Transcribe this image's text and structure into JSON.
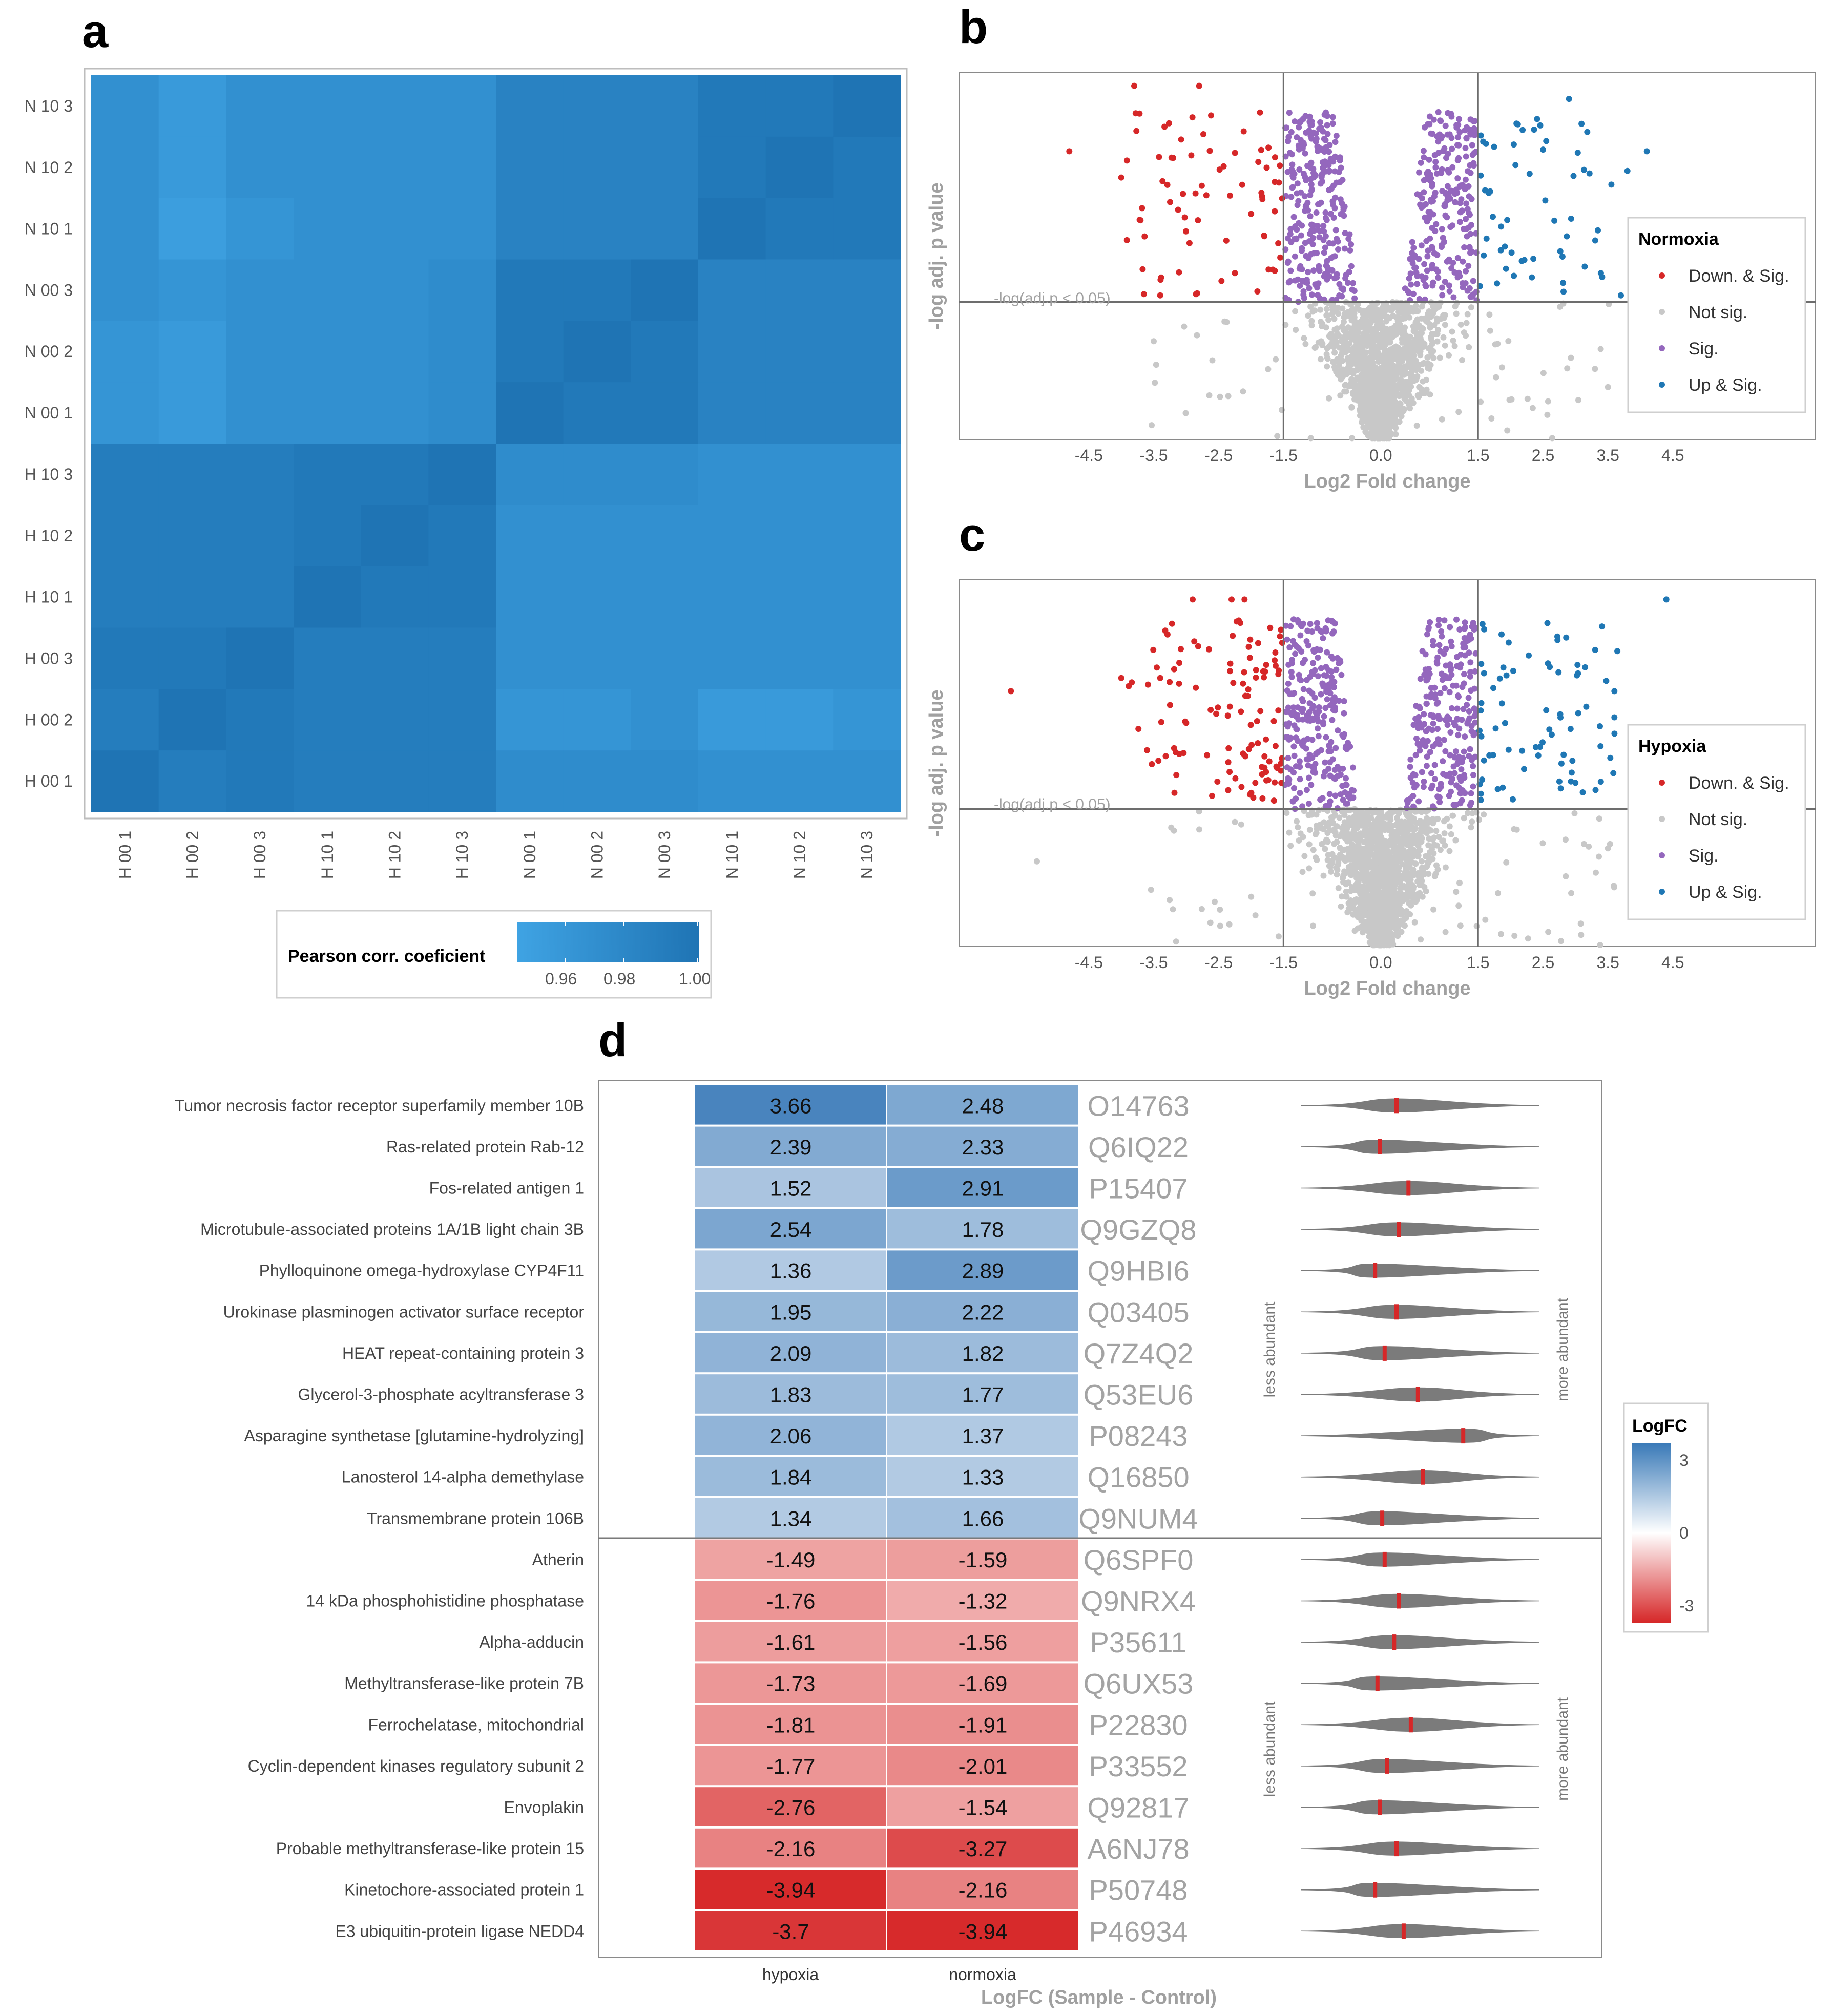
{
  "colors": {
    "down": "#d62728",
    "notsig": "#c8c8c8",
    "sig": "#9467bd",
    "up": "#1f77b4",
    "corr_low": "#3fa3e3",
    "corr_high": "#1f74b4",
    "fc_pos": "#3a7ab8",
    "fc_neg": "#d62728",
    "violin": "#7b7b7b",
    "median": "#d62728"
  },
  "panels": {
    "a": "a",
    "b": "b",
    "c": "c",
    "d": "d"
  },
  "chart_data": [
    {
      "id": "a",
      "type": "heatmap",
      "title": "",
      "row_labels_top_to_bottom": [
        "N 10 3",
        "N 10 2",
        "N 10 1",
        "N 00 3",
        "N 00 2",
        "N 00 1",
        "H 10 3",
        "H 10 2",
        "H 10 1",
        "H 00 3",
        "H 00 2",
        "H 00 1"
      ],
      "col_labels": [
        "H 00 1",
        "H 00 2",
        "H 00 3",
        "H 10 1",
        "H 10 2",
        "H 10 3",
        "N 00 1",
        "N 00 2",
        "N 00 3",
        "N 10 1",
        "N 10 2",
        "N 10 3"
      ],
      "values_rows_top_to_bottom": [
        [
          0.97,
          0.96,
          0.97,
          0.97,
          0.97,
          0.97,
          0.985,
          0.985,
          0.985,
          0.995,
          0.995,
          1.0
        ],
        [
          0.97,
          0.96,
          0.97,
          0.97,
          0.97,
          0.97,
          0.985,
          0.985,
          0.985,
          0.995,
          1.0,
          0.995
        ],
        [
          0.97,
          0.955,
          0.965,
          0.97,
          0.97,
          0.97,
          0.985,
          0.985,
          0.985,
          1.0,
          0.995,
          0.995
        ],
        [
          0.97,
          0.965,
          0.97,
          0.97,
          0.97,
          0.975,
          0.995,
          0.995,
          1.0,
          0.985,
          0.985,
          0.985
        ],
        [
          0.965,
          0.96,
          0.97,
          0.97,
          0.97,
          0.975,
          0.995,
          1.0,
          0.995,
          0.985,
          0.985,
          0.985
        ],
        [
          0.965,
          0.96,
          0.97,
          0.97,
          0.97,
          0.975,
          1.0,
          0.995,
          0.995,
          0.985,
          0.985,
          0.985
        ],
        [
          0.99,
          0.99,
          0.99,
          0.995,
          0.995,
          1.0,
          0.975,
          0.975,
          0.975,
          0.97,
          0.97,
          0.97
        ],
        [
          0.99,
          0.99,
          0.99,
          0.995,
          1.0,
          0.995,
          0.97,
          0.97,
          0.97,
          0.97,
          0.97,
          0.97
        ],
        [
          0.99,
          0.99,
          0.99,
          1.0,
          0.995,
          0.995,
          0.97,
          0.97,
          0.97,
          0.97,
          0.97,
          0.97
        ],
        [
          0.995,
          0.995,
          1.0,
          0.99,
          0.99,
          0.99,
          0.97,
          0.97,
          0.97,
          0.97,
          0.97,
          0.97
        ],
        [
          0.99,
          1.0,
          0.995,
          0.99,
          0.99,
          0.99,
          0.965,
          0.965,
          0.97,
          0.96,
          0.96,
          0.965
        ],
        [
          1.0,
          0.99,
          0.995,
          0.99,
          0.99,
          0.99,
          0.975,
          0.975,
          0.975,
          0.97,
          0.97,
          0.97
        ]
      ],
      "legend": {
        "title": "Pearson corr. coeficient",
        "ticks": [
          "0.96",
          "0.98",
          "1.00"
        ],
        "range": [
          0.95,
          1.0
        ]
      }
    },
    {
      "id": "b",
      "type": "scatter",
      "title": "",
      "xlabel": "Log2 Fold change",
      "ylabel": "-log adj. p value",
      "x_ticks": [
        "-4.5",
        "-3.5",
        "-2.5",
        "-1.5",
        "0.0",
        "1.5",
        "2.5",
        "3.5",
        "4.5"
      ],
      "x_tick_values": [
        -4.5,
        -3.5,
        -2.5,
        -1.5,
        0.0,
        1.5,
        2.5,
        3.5,
        4.5
      ],
      "xlim": [
        -6.5,
        6.7
      ],
      "ylim": [
        0,
        5.6
      ],
      "vlines": [
        -1.5,
        1.5
      ],
      "hline": 2.1,
      "threshold_label": "-log(adj.p < 0.05)",
      "legend": {
        "title": "Normoxia",
        "entries": [
          "Down. & Sig.",
          "Not sig.",
          "Sig.",
          "Up & Sig."
        ]
      },
      "notable_points": [
        [
          -3.8,
          5.4
        ],
        [
          -2.8,
          5.4
        ],
        [
          -4.8,
          4.4
        ],
        [
          -3.2,
          4.3
        ],
        [
          -4.0,
          4.0
        ],
        [
          -3.5,
          1.5
        ],
        [
          2.9,
          5.2
        ],
        [
          4.1,
          4.4
        ],
        [
          3.8,
          4.1
        ],
        [
          3.7,
          2.2
        ],
        [
          3.5,
          0.8
        ],
        [
          -3.4,
          2.2
        ]
      ],
      "generated_clouds": {
        "down_sig_n": 70,
        "sig_n": 520,
        "up_sig_n": 55,
        "notsig_n": 1400
      }
    },
    {
      "id": "c",
      "type": "scatter",
      "title": "",
      "xlabel": "Log2 Fold change",
      "ylabel": "-log adj. p value",
      "x_ticks": [
        "-4.5",
        "-3.5",
        "-2.5",
        "-1.5",
        "0.0",
        "1.5",
        "2.5",
        "3.5",
        "4.5"
      ],
      "x_tick_values": [
        -4.5,
        -3.5,
        -2.5,
        -1.5,
        0.0,
        1.5,
        2.5,
        3.5,
        4.5
      ],
      "xlim": [
        -6.5,
        6.7
      ],
      "ylim": [
        0,
        5.6
      ],
      "vlines": [
        -1.5,
        1.5
      ],
      "hline": 2.1,
      "threshold_label": "-log(adj.p < 0.05)",
      "legend": {
        "title": "Hypoxia",
        "entries": [
          "Down. & Sig.",
          "Not sig.",
          "Sig.",
          "Up & Sig."
        ]
      },
      "notable_points": [
        [
          -2.9,
          5.3
        ],
        [
          -2.3,
          5.3
        ],
        [
          -2.1,
          5.3
        ],
        [
          4.4,
          5.3
        ],
        [
          -5.7,
          3.9
        ],
        [
          3.6,
          3.9
        ],
        [
          3.6,
          3.5
        ],
        [
          -4.0,
          4.1
        ],
        [
          -3.4,
          4.1
        ],
        [
          -2.6,
          2.3
        ],
        [
          -5.3,
          1.3
        ],
        [
          3.5,
          1.5
        ]
      ],
      "generated_clouds": {
        "down_sig_n": 110,
        "sig_n": 520,
        "up_sig_n": 75,
        "notsig_n": 1400
      }
    },
    {
      "id": "d",
      "type": "heatmap",
      "title": "",
      "xlabel": "LogFC (Sample - Control)",
      "columns": [
        "hypoxia",
        "normoxia"
      ],
      "proteins": [
        "Tumor necrosis factor receptor superfamily member 10B",
        "Ras-related protein Rab-12",
        "Fos-related antigen 1",
        "Microtubule-associated proteins 1A/1B light chain 3B",
        "Phylloquinone omega-hydroxylase CYP4F11",
        "Urokinase plasminogen activator surface receptor",
        "HEAT repeat-containing protein 3",
        "Glycerol-3-phosphate acyltransferase 3",
        "Asparagine synthetase [glutamine-hydrolyzing]",
        "Lanosterol 14-alpha demethylase",
        "Transmembrane protein 106B",
        "Atherin",
        "14 kDa phosphohistidine phosphatase",
        "Alpha-adducin",
        "Methyltransferase-like protein 7B",
        "Ferrochelatase, mitochondrial",
        "Cyclin-dependent kinases regulatory subunit 2",
        "Envoplakin",
        "Probable methyltransferase-like protein 15",
        "Kinetochore-associated protein 1",
        "E3 ubiquitin-protein ligase NEDD4"
      ],
      "hypoxia": [
        "3.66",
        "2.39",
        "1.52",
        "2.54",
        "1.36",
        "1.95",
        "2.09",
        "1.83",
        "2.06",
        "1.84",
        "1.34",
        "-1.49",
        "-1.76",
        "-1.61",
        "-1.73",
        "-1.81",
        "-1.77",
        "-2.76",
        "-2.16",
        "-3.94",
        "-3.7"
      ],
      "normoxia": [
        "2.48",
        "2.33",
        "2.91",
        "1.78",
        "2.89",
        "2.22",
        "1.82",
        "1.77",
        "1.37",
        "1.33",
        "1.66",
        "-1.59",
        "-1.32",
        "-1.56",
        "-1.69",
        "-1.91",
        "-2.01",
        "-1.54",
        "-3.27",
        "-2.16",
        "-3.94"
      ],
      "accessions": [
        "O14763",
        "Q6IQ22",
        "P15407",
        "Q9GZQ8",
        "Q9HBI6",
        "Q03405",
        "Q7Z4Q2",
        "Q53EU6",
        "P08243",
        "Q16850",
        "Q9NUM4",
        "Q6SPF0",
        "Q9NRX4",
        "P35611",
        "Q6UX53",
        "P22830",
        "P33552",
        "Q92817",
        "A6NJ78",
        "P50748",
        "P46934"
      ],
      "violin_marker_positions": [
        0.4,
        0.33,
        0.45,
        0.41,
        0.31,
        0.4,
        0.35,
        0.49,
        0.68,
        0.51,
        0.34,
        0.35,
        0.41,
        0.39,
        0.32,
        0.46,
        0.36,
        0.33,
        0.4,
        0.31,
        0.43
      ],
      "side_labels": {
        "left": "less abundant",
        "right": "more abundant"
      },
      "legend": {
        "title": "LogFC",
        "ticks": [
          "3",
          "0",
          "-3"
        ],
        "range": [
          -4,
          4
        ]
      }
    }
  ]
}
